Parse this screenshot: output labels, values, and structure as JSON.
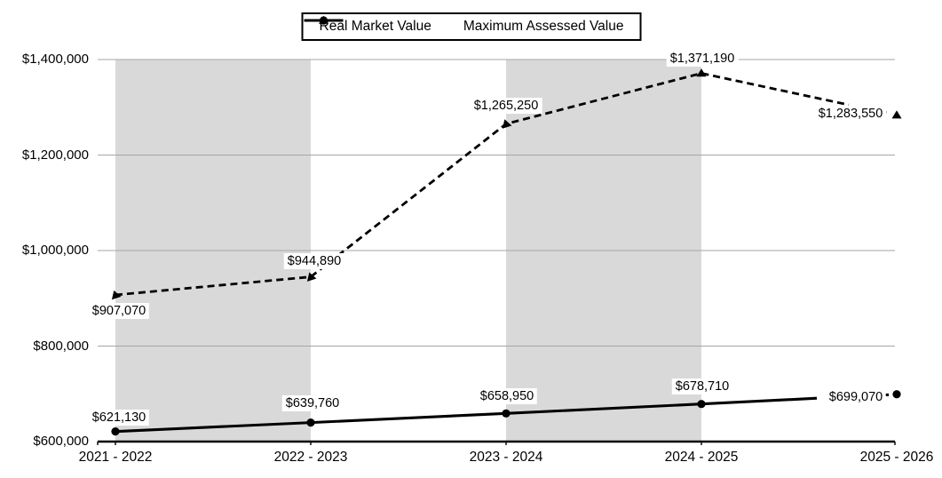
{
  "chart_data": {
    "type": "line",
    "title": "",
    "categories": [
      "2021 - 2022",
      "2022 - 2023",
      "2023 - 2024",
      "2024 - 2025",
      "2025 - 2026"
    ],
    "series": [
      {
        "name": "Real Market Value",
        "line_style": "dashed",
        "marker": "triangle",
        "color": "#000000",
        "values": [
          907070,
          944890,
          1265250,
          1371190,
          1283550
        ],
        "labels": [
          "$907,070",
          "$944,890",
          "$1,265,250",
          "$1,371,190",
          "$1,283,550"
        ]
      },
      {
        "name": "Maximum Assessed Value",
        "line_style": "solid",
        "marker": "circle",
        "color": "#000000",
        "values": [
          621130,
          639760,
          658950,
          678710,
          699070
        ],
        "labels": [
          "$621,130",
          "$639,760",
          "$658,950",
          "$678,710",
          "$699,070"
        ]
      }
    ],
    "y_axis": {
      "min": 600000,
      "max": 1400000,
      "tick_step": 200000,
      "tick_values": [
        600000,
        800000,
        1000000,
        1200000,
        1400000
      ],
      "tick_labels": [
        "$600,000",
        "$800,000",
        "$1,000,000",
        "$1,200,000",
        "$1,400,000"
      ]
    },
    "legend_position": "top",
    "grid": true,
    "colors": {
      "plot_band": "#d9d9d9",
      "gridline": "#a6a6a6",
      "axis": "#000000",
      "text": "#000000"
    },
    "shaded_band_columns": [
      0,
      2
    ]
  }
}
